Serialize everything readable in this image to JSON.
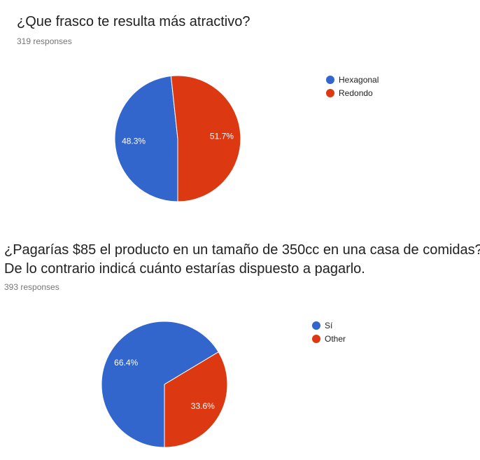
{
  "q1": {
    "title": "¿Que frasco te resulta más atractivo?",
    "responses": "319 responses"
  },
  "q2": {
    "title_line1": "¿Pagarías $85 el producto en un tamaño de 350cc en una casa de comidas?",
    "title_line2": "De lo contrario indicá cuánto estarías dispuesto a pagarlo.",
    "responses": "393 responses"
  },
  "chart_data": [
    {
      "type": "pie",
      "title": "¿Que frasco te resulta más atractivo?",
      "slices": [
        {
          "label": "Hexagonal",
          "value": 48.3,
          "display": "48.3%",
          "color": "#3366cc"
        },
        {
          "label": "Redondo",
          "value": 51.7,
          "display": "51.7%",
          "color": "#dc3912"
        }
      ],
      "legend": "right"
    },
    {
      "type": "pie",
      "title": "¿Pagarías $85 el producto en un tamaño de 350cc en una casa de comidas? De lo contrario indicá cuánto estarías dispuesto a pagarlo.",
      "slices": [
        {
          "label": "Sí",
          "value": 66.4,
          "display": "66.4%",
          "color": "#3366cc"
        },
        {
          "label": "Other",
          "value": 33.6,
          "display": "33.6%",
          "color": "#dc3912"
        }
      ],
      "legend": "right"
    }
  ]
}
